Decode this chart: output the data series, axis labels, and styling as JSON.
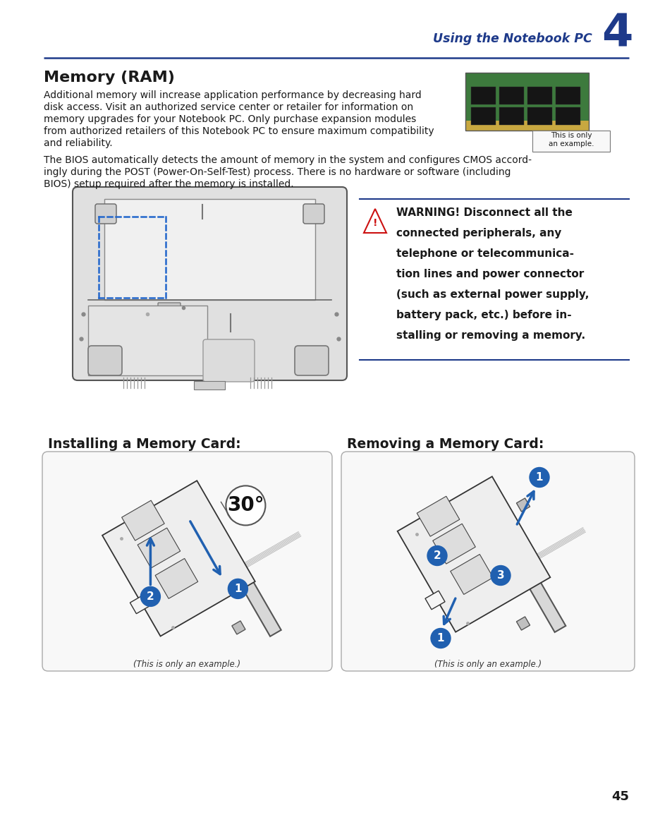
{
  "page_bg": "#ffffff",
  "header_color": "#1e3a8a",
  "header_text": "Using the Notebook PC",
  "header_number": "4",
  "section_title": "Memory (RAM)",
  "body_text_1a": "Additional memory will increase application performance by decreasing hard",
  "body_text_1b": "disk access. Visit an authorized service center or retailer for information on",
  "body_text_1c": "memory upgrades for your Notebook PC. Only purchase expansion modules",
  "body_text_1d": "from authorized retailers of this Notebook PC to ensure maximum compatibility",
  "body_text_1e": "and reliability.",
  "body_text_2a": "The BIOS automatically detects the amount of memory in the system and configures CMOS accord-",
  "body_text_2b": "ingly during the POST (Power-On-Self-Test) process. There is no hardware or software (including",
  "body_text_2c": "BIOS) setup required after the memory is installed.",
  "warning_line1": "WARNING! Disconnect all the",
  "warning_line2": "connected peripherals, any",
  "warning_line3": "telephone or telecommunica-",
  "warning_line4": "tion lines and power connector",
  "warning_line5": "(such as external power supply,",
  "warning_line6": "battery pack, etc.) before in-",
  "warning_line7": "stalling or removing a memory.",
  "this_is_only": "This is only\nan example.",
  "install_title": "Installing a Memory Card:",
  "remove_title": "Removing a Memory Card:",
  "install_caption": "(This is only an example.)",
  "remove_caption": "(This is only an example.)",
  "install_angle": "30",
  "page_number": "45",
  "line_color": "#1e3a8a",
  "blue_color": "#2060b0",
  "text_color": "#1a1a1a",
  "gray_line": "#888888",
  "light_gray": "#e8e8e8",
  "medium_gray": "#cccccc",
  "dark_gray": "#444444"
}
